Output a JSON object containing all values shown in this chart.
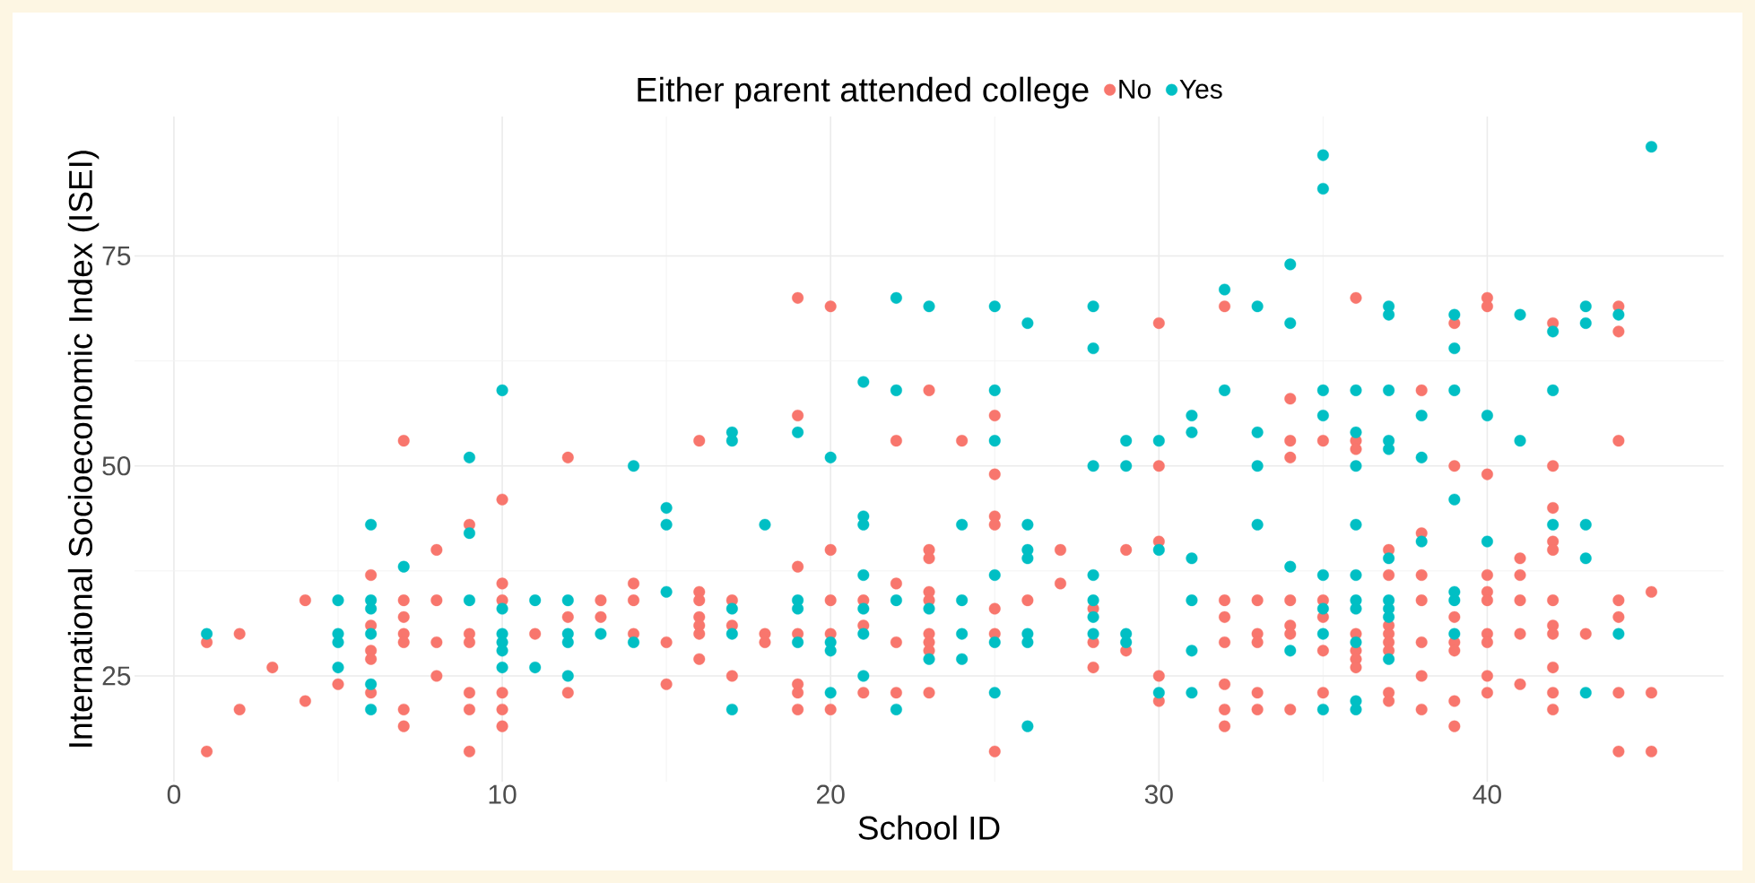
{
  "chart_data": {
    "type": "scatter",
    "xlabel": "School ID",
    "ylabel": "International Socioeconomic Index (ISEI)",
    "legend_title": "Either parent attended college",
    "xlim": [
      -1.2,
      47.2
    ],
    "ylim": [
      12.4,
      91.6
    ],
    "xticks": [
      0,
      10,
      20,
      30,
      40
    ],
    "yticks": [
      25,
      50,
      75
    ],
    "grid": true,
    "legend": "top",
    "marker": "circle",
    "series": [
      {
        "name": "No",
        "color": "#f8766d",
        "x": [
          1,
          1,
          2,
          2,
          3,
          4,
          4,
          5,
          6,
          6,
          6,
          6,
          6,
          7,
          7,
          7,
          7,
          7,
          7,
          7,
          8,
          8,
          8,
          8,
          9,
          9,
          9,
          9,
          9,
          9,
          10,
          10,
          10,
          10,
          10,
          10,
          11,
          12,
          12,
          12,
          13,
          13,
          14,
          14,
          14,
          15,
          15,
          16,
          16,
          16,
          16,
          16,
          16,
          16,
          17,
          17,
          17,
          18,
          18,
          19,
          19,
          19,
          19,
          19,
          19,
          19,
          20,
          20,
          20,
          20,
          20,
          21,
          21,
          21,
          22,
          22,
          22,
          22,
          23,
          23,
          23,
          23,
          23,
          23,
          23,
          23,
          23,
          24,
          25,
          25,
          25,
          25,
          25,
          25,
          25,
          26,
          27,
          27,
          28,
          28,
          28,
          29,
          29,
          30,
          30,
          30,
          30,
          30,
          32,
          32,
          32,
          32,
          32,
          32,
          32,
          33,
          33,
          33,
          33,
          33,
          34,
          34,
          34,
          34,
          34,
          34,
          34,
          35,
          35,
          35,
          35,
          35,
          36,
          36,
          36,
          36,
          36,
          36,
          36,
          37,
          37,
          37,
          37,
          37,
          37,
          37,
          37,
          38,
          38,
          38,
          38,
          38,
          38,
          38,
          39,
          39,
          39,
          39,
          39,
          39,
          39,
          40,
          40,
          40,
          40,
          40,
          40,
          40,
          40,
          40,
          40,
          41,
          41,
          41,
          41,
          41,
          42,
          42,
          42,
          42,
          42,
          42,
          42,
          42,
          42,
          42,
          42,
          43,
          44,
          44,
          44,
          44,
          44,
          44,
          44,
          45,
          45,
          45
        ],
        "values": [
          29,
          16,
          30,
          21,
          26,
          34,
          22,
          24,
          37,
          31,
          28,
          27,
          23,
          53,
          34,
          32,
          30,
          29,
          21,
          19,
          40,
          34,
          29,
          25,
          43,
          30,
          29,
          23,
          21,
          16,
          46,
          36,
          34,
          23,
          21,
          19,
          30,
          51,
          32,
          23,
          34,
          32,
          36,
          34,
          30,
          29,
          24,
          53,
          35,
          34,
          32,
          31,
          30,
          27,
          34,
          31,
          25,
          30,
          29,
          70,
          56,
          38,
          30,
          24,
          23,
          21,
          69,
          40,
          34,
          30,
          21,
          34,
          31,
          23,
          53,
          36,
          29,
          23,
          59,
          40,
          39,
          35,
          34,
          30,
          29,
          28,
          23,
          53,
          56,
          49,
          44,
          43,
          33,
          30,
          16,
          34,
          40,
          36,
          33,
          29,
          26,
          40,
          28,
          67,
          50,
          41,
          25,
          22,
          69,
          34,
          32,
          29,
          24,
          21,
          19,
          34,
          30,
          29,
          23,
          21,
          58,
          53,
          51,
          34,
          31,
          30,
          21,
          53,
          34,
          32,
          28,
          23,
          70,
          53,
          52,
          30,
          28,
          27,
          26,
          40,
          37,
          31,
          30,
          29,
          28,
          23,
          22,
          59,
          42,
          37,
          34,
          29,
          25,
          21,
          67,
          50,
          32,
          29,
          28,
          22,
          19,
          70,
          69,
          49,
          37,
          35,
          34,
          30,
          29,
          25,
          23,
          39,
          37,
          34,
          30,
          24,
          67,
          50,
          45,
          41,
          40,
          34,
          31,
          30,
          26,
          23,
          21,
          30,
          69,
          66,
          53,
          34,
          32,
          23,
          16,
          35,
          23,
          16
        ]
      },
      {
        "name": "Yes",
        "color": "#00bfc4",
        "x": [
          1,
          5,
          5,
          5,
          5,
          6,
          6,
          6,
          6,
          6,
          6,
          7,
          9,
          9,
          9,
          10,
          10,
          10,
          10,
          10,
          10,
          11,
          11,
          12,
          12,
          12,
          12,
          13,
          14,
          14,
          15,
          15,
          15,
          17,
          17,
          17,
          17,
          17,
          18,
          19,
          19,
          19,
          19,
          20,
          20,
          20,
          20,
          21,
          21,
          21,
          21,
          21,
          21,
          21,
          22,
          22,
          22,
          22,
          23,
          23,
          23,
          24,
          24,
          24,
          24,
          25,
          25,
          25,
          25,
          25,
          25,
          26,
          26,
          26,
          26,
          26,
          26,
          26,
          28,
          28,
          28,
          28,
          28,
          28,
          28,
          29,
          29,
          29,
          29,
          30,
          30,
          30,
          31,
          31,
          31,
          31,
          31,
          31,
          32,
          32,
          33,
          33,
          33,
          33,
          34,
          34,
          34,
          34,
          35,
          35,
          35,
          35,
          35,
          35,
          35,
          35,
          36,
          36,
          36,
          36,
          36,
          36,
          36,
          36,
          36,
          36,
          37,
          37,
          37,
          37,
          37,
          37,
          37,
          37,
          37,
          37,
          38,
          38,
          38,
          39,
          39,
          39,
          39,
          39,
          39,
          39,
          40,
          40,
          41,
          41,
          42,
          42,
          42,
          43,
          43,
          43,
          43,
          43,
          44,
          44,
          45
        ],
        "values": [
          30,
          34,
          30,
          29,
          26,
          43,
          34,
          33,
          30,
          24,
          21,
          38,
          51,
          42,
          34,
          59,
          33,
          30,
          29,
          28,
          26,
          34,
          26,
          34,
          30,
          29,
          25,
          30,
          50,
          29,
          45,
          43,
          35,
          54,
          53,
          33,
          30,
          21,
          43,
          54,
          34,
          33,
          29,
          51,
          29,
          28,
          23,
          60,
          44,
          43,
          37,
          33,
          30,
          25,
          70,
          59,
          34,
          21,
          69,
          33,
          27,
          43,
          34,
          30,
          27,
          69,
          59,
          53,
          37,
          29,
          23,
          67,
          43,
          40,
          39,
          30,
          29,
          19,
          69,
          64,
          50,
          37,
          34,
          32,
          30,
          53,
          50,
          30,
          29,
          53,
          40,
          23,
          56,
          54,
          39,
          34,
          28,
          23,
          71,
          59,
          69,
          54,
          50,
          43,
          74,
          67,
          38,
          28,
          87,
          83,
          59,
          56,
          37,
          33,
          30,
          21,
          59,
          54,
          50,
          43,
          37,
          34,
          33,
          29,
          22,
          21,
          69,
          68,
          59,
          53,
          52,
          39,
          34,
          33,
          32,
          27,
          56,
          51,
          41,
          68,
          64,
          59,
          46,
          35,
          34,
          30,
          56,
          41,
          68,
          53,
          66,
          59,
          43,
          69,
          67,
          43,
          39,
          23,
          68,
          30,
          88
        ]
      }
    ]
  }
}
